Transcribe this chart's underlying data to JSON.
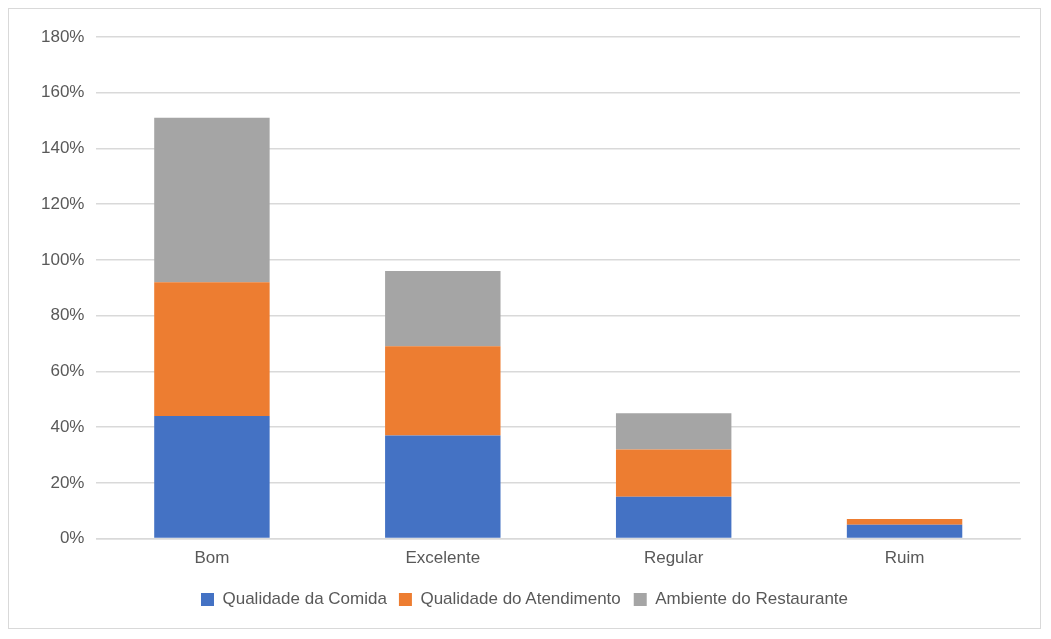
{
  "chart_data": {
    "type": "bar",
    "stacked": true,
    "categories": [
      "Bom",
      "Excelente",
      "Regular",
      "Ruim"
    ],
    "series": [
      {
        "name": "Qualidade da Comida",
        "color": "#4472c4",
        "values": [
          44,
          37,
          15,
          5
        ]
      },
      {
        "name": "Qualidade do Atendimento",
        "color": "#ed7d31",
        "values": [
          48,
          32,
          17,
          2
        ]
      },
      {
        "name": "Ambiente do Restaurante",
        "color": "#a5a5a5",
        "values": [
          59,
          27,
          13,
          0
        ]
      }
    ],
    "ylim": [
      0,
      180
    ],
    "yticks": [
      {
        "value": 0,
        "label": "0%"
      },
      {
        "value": 20,
        "label": "20%"
      },
      {
        "value": 40,
        "label": "40%"
      },
      {
        "value": 60,
        "label": "60%"
      },
      {
        "value": 80,
        "label": "80%"
      },
      {
        "value": 100,
        "label": "100%"
      },
      {
        "value": 120,
        "label": "120%"
      },
      {
        "value": 140,
        "label": "140%"
      },
      {
        "value": 160,
        "label": "160%"
      },
      {
        "value": 180,
        "label": "180%"
      }
    ],
    "grid": "y",
    "legend": "bottom"
  }
}
